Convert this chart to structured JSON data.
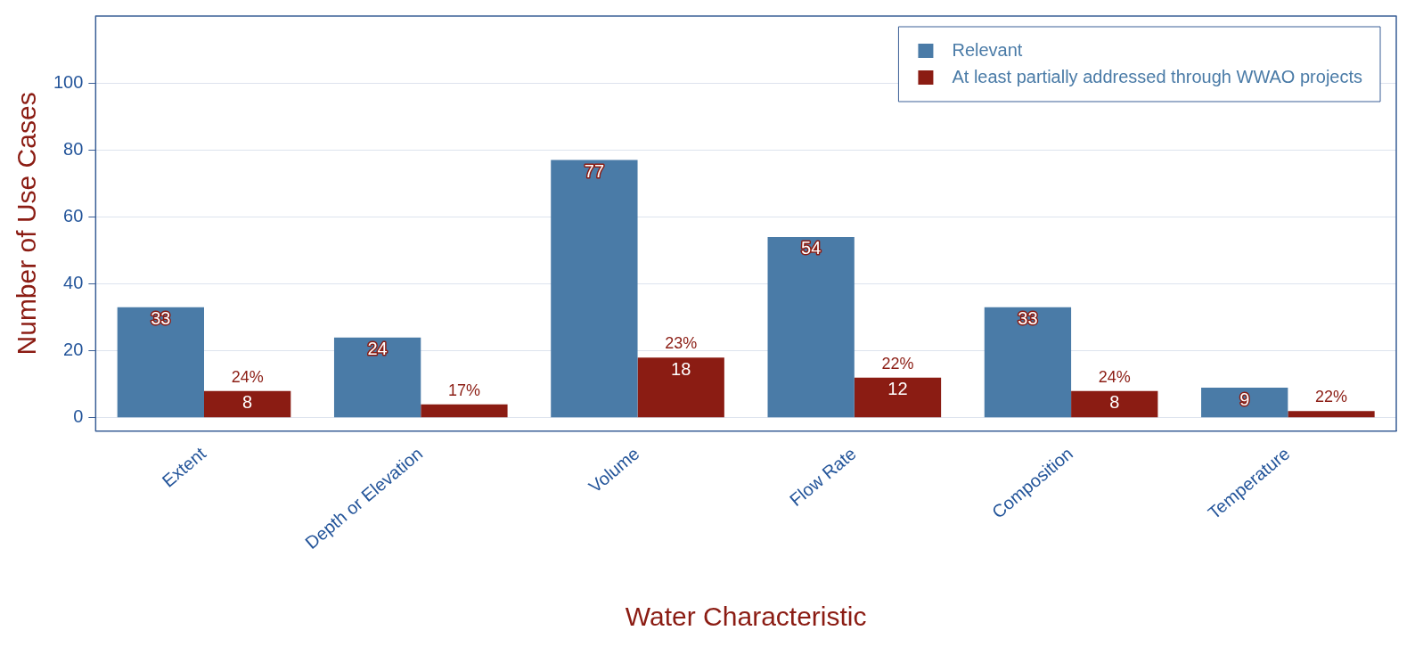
{
  "chart_data": {
    "type": "bar",
    "xlabel": "Water Characteristic",
    "ylabel": "Number of Use Cases",
    "categories": [
      "Extent",
      "Depth or Elevation",
      "Volume",
      "Flow Rate",
      "Composition",
      "Temperature"
    ],
    "series": [
      {
        "name": "Relevant",
        "color": "#4a7ba7",
        "values": [
          33,
          24,
          77,
          54,
          33,
          9
        ],
        "value_labels": [
          "33",
          "24",
          "77",
          "54",
          "33",
          "9"
        ]
      },
      {
        "name": "At least partially addressed through WWAO projects",
        "color": "#8b1c13",
        "values": [
          8,
          4,
          18,
          12,
          8,
          2
        ],
        "value_labels": [
          "8",
          null,
          "18",
          "12",
          "8",
          null
        ]
      }
    ],
    "annotations": [
      {
        "text": "24%",
        "x": "Extent",
        "y": 8
      },
      {
        "text": "17%",
        "x": "Depth or Elevation",
        "y": 4
      },
      {
        "text": "23%",
        "x": "Volume",
        "y": 18
      },
      {
        "text": "22%",
        "x": "Flow Rate",
        "y": 12
      },
      {
        "text": "24%",
        "x": "Composition",
        "y": 8
      },
      {
        "text": "22%",
        "x": "Temperature",
        "y": 2
      }
    ],
    "ylim": [
      -4,
      120
    ],
    "yticks": [
      0,
      20,
      40,
      60,
      80,
      100
    ],
    "grid": "y",
    "legend": "top right"
  }
}
